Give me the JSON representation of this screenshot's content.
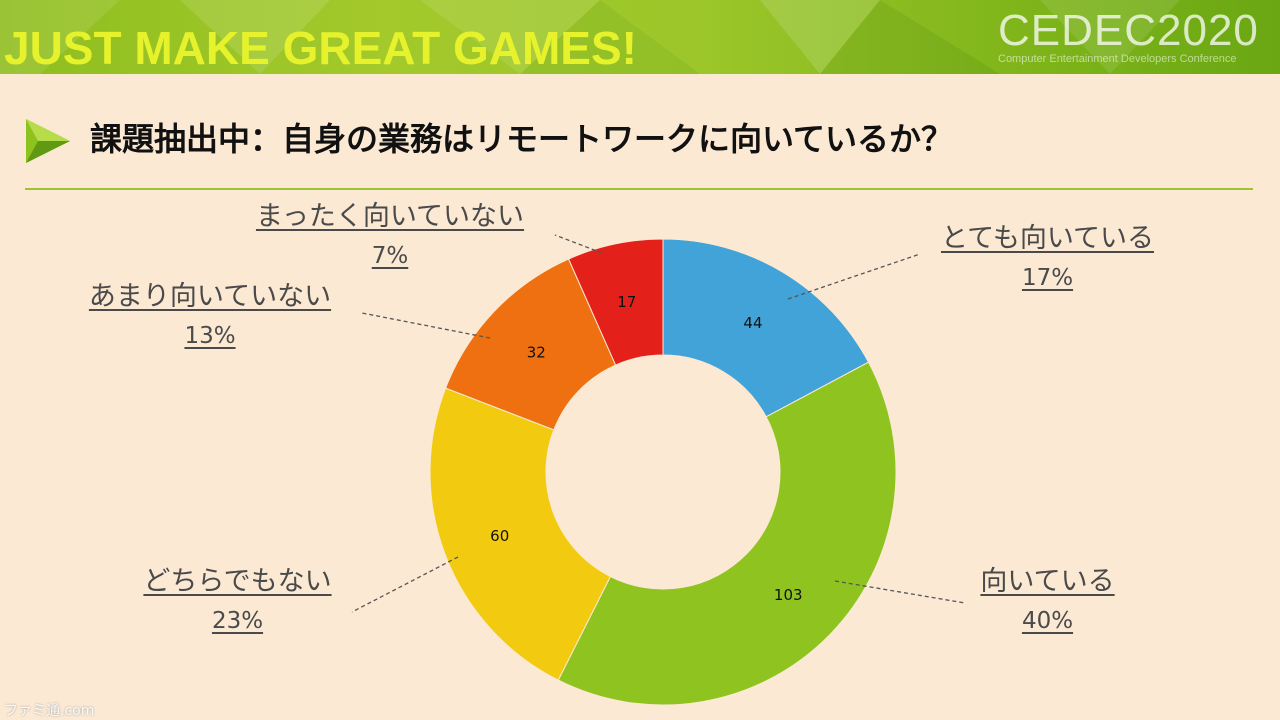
{
  "banner": {
    "slogan": "JUST MAKE GREAT GAMES!",
    "logo": "CEDEC2020",
    "logo_sub": "Computer Entertainment Developers Conference"
  },
  "title": "課題抽出中：自身の業務はリモートワークに向いているか？",
  "colors": {
    "accent": "#8dc21f",
    "background": "#fbe9d4"
  },
  "chart_data": {
    "type": "pie",
    "donut": true,
    "title": "",
    "categories": [
      "とても向いている",
      "向いている",
      "どちらでもない",
      "あまり向いていない",
      "まったく向いていない"
    ],
    "values": [
      44,
      103,
      60,
      32,
      17
    ],
    "percent_labels": [
      "17%",
      "40%",
      "23%",
      "13%",
      "7%"
    ],
    "colors": [
      "#41a3d7",
      "#8fc31f",
      "#f2cb10",
      "#ee7010",
      "#e4201b"
    ]
  },
  "watermark": "ファミ通.com"
}
